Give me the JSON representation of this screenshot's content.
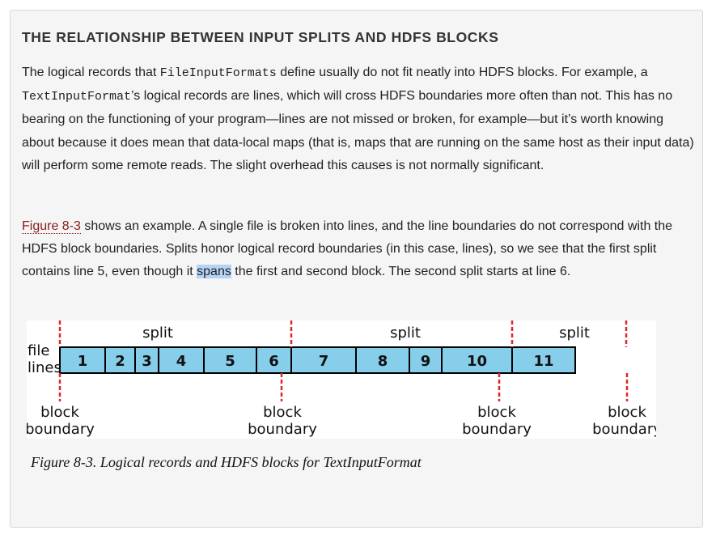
{
  "section": {
    "title": "THE RELATIONSHIP BETWEEN INPUT SPLITS AND HDFS BLOCKS"
  },
  "paragraph1": {
    "t1": "The logical records that ",
    "code1": "FileInputFormats",
    "t2": " define usually do not fit neatly into HDFS blocks. For example, a ",
    "code2": "TextInputFormat",
    "t3": "’s logical records are lines, which will cross HDFS boundaries more often than not. This has no bearing on the functioning of your program—lines are not missed or broken, for example—but it’s worth knowing about because it does mean that data-local maps (that is, maps that are running on the same host as their input data) will perform some remote reads. The slight overhead this causes is not normally significant."
  },
  "paragraph2": {
    "link": "Figure 8-3",
    "t1": " shows an example. A single file is broken into lines, and the line boundaries do not correspond with the HDFS block boundaries. Splits honor logical record boundaries (in this case, lines), so we see that the first split contains line 5, even though it ",
    "highlight": "spans",
    "t2": " the first and second block. The second split starts at line 6."
  },
  "figure": {
    "split_label": "split",
    "file_label": "file",
    "lines_label": "lines",
    "block_label": "block",
    "boundary_label": "boundary",
    "line_numbers": [
      "1",
      "2",
      "3",
      "4",
      "5",
      "6",
      "7",
      "8",
      "9",
      "10",
      "11"
    ],
    "line_color": "#87ceeb",
    "marker_color": "#e0242b",
    "caption": "Figure 8-3. Logical records and HDFS blocks for TextInputFormat"
  }
}
